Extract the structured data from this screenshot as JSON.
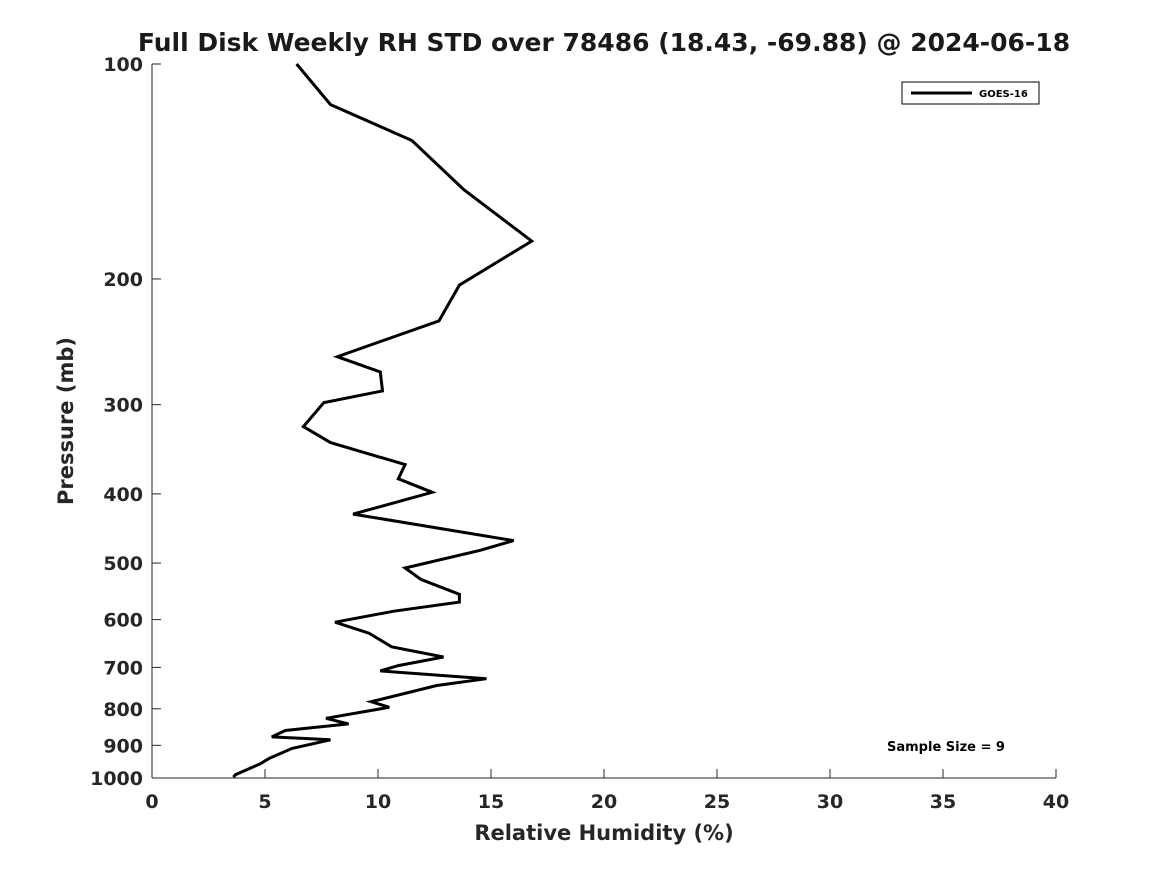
{
  "chart_data": {
    "type": "line",
    "title": "Full Disk Weekly RH STD over 78486 (18.43, -69.88) @ 2024-06-18",
    "xlabel": "Relative Humidity (%)",
    "ylabel": "Pressure (mb)",
    "xlim": [
      0,
      40
    ],
    "ylim": [
      100,
      1000
    ],
    "yscale": "log",
    "y_reversed": true,
    "grid": false,
    "legend_position": "top-right",
    "x_ticks": [
      0,
      5,
      10,
      15,
      20,
      25,
      30,
      35,
      40
    ],
    "x_tick_labels": [
      "0",
      "5",
      "10",
      "15",
      "20",
      "25",
      "30",
      "35",
      "40"
    ],
    "y_ticks": [
      100,
      200,
      300,
      400,
      500,
      600,
      700,
      800,
      900,
      1000
    ],
    "y_tick_labels": [
      "100",
      "200",
      "300",
      "400",
      "500",
      "600",
      "700",
      "800",
      "900",
      "1000"
    ],
    "annotation": "Sample Size = 9",
    "series": [
      {
        "name": "GOES-16",
        "color": "#000000",
        "x": [
          6.4,
          7.9,
          11.5,
          13.8,
          16.8,
          13.6,
          12.7,
          8.2,
          10.1,
          10.2,
          7.6,
          6.7,
          7.9,
          11.2,
          10.9,
          12.4,
          8.9,
          16.0,
          14.5,
          11.2,
          11.9,
          13.6,
          13.6,
          10.7,
          8.1,
          9.6,
          10.6,
          12.9,
          10.9,
          10.1,
          14.8,
          12.6,
          9.7,
          10.5,
          7.7,
          8.7,
          5.9,
          5.3,
          7.9,
          6.2,
          5.2,
          4.8,
          3.7,
          3.6
        ],
        "y": [
          100,
          114,
          128,
          150,
          177,
          204,
          229,
          257,
          270,
          287,
          298,
          322,
          339,
          364,
          381,
          398,
          427,
          465,
          480,
          508,
          527,
          553,
          567,
          584,
          605,
          627,
          655,
          677,
          696,
          708,
          726,
          742,
          782,
          796,
          825,
          840,
          858,
          876,
          884,
          909,
          938,
          955,
          989,
          997
        ]
      }
    ]
  }
}
